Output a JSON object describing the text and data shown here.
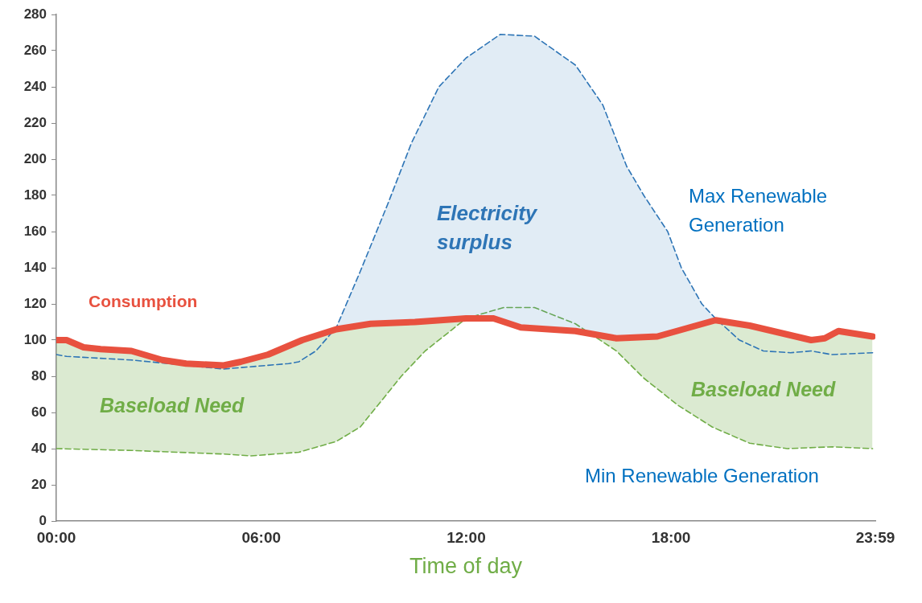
{
  "chart_data": {
    "type": "line",
    "xlabel": "Time of day",
    "xlim": [
      0,
      23.98
    ],
    "xticks": [
      {
        "value": 0,
        "label": "00:00"
      },
      {
        "value": 6,
        "label": "06:00"
      },
      {
        "value": 12,
        "label": "12:00"
      },
      {
        "value": 18,
        "label": "18:00"
      },
      {
        "value": 23.98,
        "label": "23:59"
      }
    ],
    "ylim": [
      0,
      280
    ],
    "yticks": [
      0,
      20,
      40,
      60,
      80,
      100,
      120,
      140,
      160,
      180,
      200,
      220,
      240,
      260,
      280
    ],
    "grid": false,
    "legend": false,
    "marker": "none",
    "series": [
      {
        "name": "Consumption",
        "color": "#e8513f",
        "line_style": "solid",
        "x": [
          0,
          0.3,
          0.8,
          1.3,
          2.2,
          3.1,
          3.8,
          4.9,
          5.4,
          6.2,
          7.2,
          8.2,
          9.2,
          10.5,
          12,
          12.8,
          13.6,
          15.2,
          16.4,
          17.6,
          19.3,
          20.3,
          22.1,
          22.5,
          22.9,
          23.9
        ],
        "values": [
          100,
          100,
          96,
          95,
          94,
          89,
          87,
          86,
          88,
          92,
          100,
          106,
          109,
          110,
          112,
          112,
          107,
          105,
          101,
          102,
          111,
          108,
          100,
          101,
          105,
          102
        ]
      },
      {
        "name": "Max Renewable Generation",
        "color": "#2e75b6",
        "line_style": "dashed",
        "x": [
          0,
          0.3,
          2.2,
          4.9,
          6.8,
          7.1,
          7.6,
          8.2,
          8.9,
          9.7,
          10.4,
          11.2,
          12,
          13,
          14,
          15.2,
          16,
          16.7,
          17.2,
          17.9,
          18.3,
          18.9,
          19.3,
          20,
          20.7,
          21.5,
          22.1,
          22.7,
          23.9
        ],
        "values": [
          92,
          91,
          89,
          84,
          87,
          88,
          94,
          107,
          138,
          175,
          209,
          240,
          256,
          269,
          268,
          252,
          230,
          196,
          180,
          160,
          140,
          120,
          112,
          100,
          94,
          93,
          94,
          92,
          93
        ]
      },
      {
        "name": "Min Renewable Generation",
        "color": "#70ad47",
        "line_style": "dashed",
        "x": [
          0,
          2.2,
          4.9,
          5.7,
          7.1,
          8.2,
          8.9,
          9.5,
          10.1,
          10.8,
          12,
          13.1,
          14,
          15.2,
          16.4,
          17.2,
          18.2,
          19.2,
          20.3,
          21.4,
          22.7,
          23.9
        ],
        "values": [
          40,
          39,
          37,
          36,
          38,
          44,
          52,
          66,
          80,
          94,
          112,
          118,
          118,
          109,
          94,
          79,
          64,
          52,
          43,
          40,
          41,
          40
        ]
      }
    ],
    "annotations": [
      "Electricity surplus",
      "Baseload Need",
      "Baseload Need"
    ]
  }
}
